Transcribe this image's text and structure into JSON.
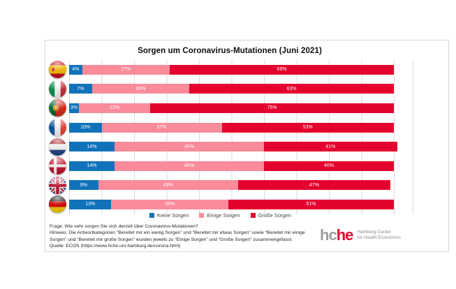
{
  "title": "Sorgen um Coronavirus-Mutationen (Juni 2021)",
  "chart_data": {
    "type": "bar",
    "orientation": "horizontal",
    "stacked": true,
    "title": "Sorgen um Coronavirus-Mutationen (Juni 2021)",
    "xlabel": "",
    "ylabel": "",
    "unit": "%",
    "xlim": [
      0,
      100
    ],
    "gridline_step": 10,
    "grid": true,
    "legend_position": "bottom",
    "categories": [
      "Spanien",
      "Italien",
      "Portugal",
      "Frankreich",
      "Niederlande",
      "Dänemark",
      "Großbritannien",
      "Deutschland"
    ],
    "category_flags": [
      "spain",
      "italy",
      "portugal",
      "france",
      "netherlands",
      "denmark",
      "uk",
      "germany"
    ],
    "series": [
      {
        "name": "Keine Sorgen",
        "color": "#1072BA",
        "values": [
          4,
          7,
          3,
          10,
          14,
          14,
          9,
          13
        ]
      },
      {
        "name": "Einige Sorgen",
        "color": "#F98B9B",
        "values": [
          27,
          30,
          22,
          37,
          46,
          46,
          43,
          36
        ]
      },
      {
        "name": "Große Sorgen",
        "color": "#E4032E",
        "values": [
          69,
          63,
          75,
          53,
          41,
          40,
          47,
          51
        ]
      }
    ]
  },
  "footer": {
    "lines": [
      "Frage: Wie sehr sorgen Sie sich derzeit über  Coronavirus-Mutationen?",
      "Hinweis: Die Antwortkategorien “Bereitet mir ein wenig Sorgen” und “Bereitet mir etwas Sorgen” sowie “Bereitet mir einige",
      "Sorgen” und “Bereitet mir große Sorgen” wurden jeweils zu “Einige Sorgen” und “Große Sorgen” zusammengefasst.",
      "Quelle: ECOS (https://www.hche.uni-hamburg.de/corona.html)"
    ]
  },
  "logo": {
    "word_gray": "hc",
    "word_red": "he",
    "tagline_line1": "Hamburg Center",
    "tagline_line2": "for Health Economics",
    "gray": "#9d9d9c",
    "red": "#E4032E",
    "tagline_color": "#8a8a8a"
  }
}
